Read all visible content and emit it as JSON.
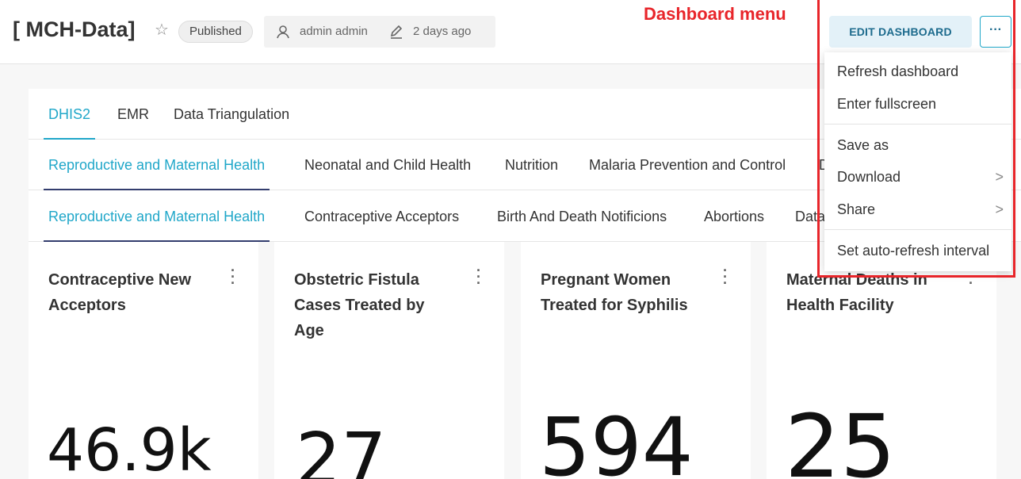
{
  "header": {
    "title": "[ MCH-Data]",
    "status_badge": "Published",
    "owner": "admin admin",
    "modified": "2 days ago",
    "edit_button": "EDIT DASHBOARD",
    "more_button": "···"
  },
  "annotation": {
    "label": "Dashboard menu",
    "color": "#e8252a"
  },
  "tabs": {
    "level1": [
      "DHIS2",
      "EMR",
      "Data Triangulation"
    ],
    "level2": [
      "Reproductive and Maternal Health",
      "Neonatal and Child Health",
      "Nutrition",
      "Malaria Prevention and Control",
      "D"
    ],
    "level3": [
      "Reproductive and Maternal Health",
      "Contraceptive Acceptors",
      "Birth And Death Notificions",
      "Abortions",
      "Data"
    ]
  },
  "cards": [
    {
      "title": "Contraceptive New Acceptors",
      "value": "46.9k"
    },
    {
      "title": "Obstetric Fistula Cases Treated by Age",
      "value": "27"
    },
    {
      "title": "Pregnant Women Treated for Syphilis",
      "value": "594"
    },
    {
      "title": "Maternal Deaths in Health Facility",
      "value": "25"
    }
  ],
  "menu": {
    "refresh": "Refresh dashboard",
    "fullscreen": "Enter fullscreen",
    "save_as": "Save as",
    "download": "Download",
    "share": "Share",
    "auto_refresh": "Set auto-refresh interval"
  },
  "colors": {
    "accent": "#20a7c9",
    "text": "#333333",
    "highlight": "#e8252a"
  },
  "icons": {
    "star": "star-icon",
    "user": "user-icon",
    "pencil": "pencil-icon",
    "kebab": "kebab-icon",
    "chevron": "chevron-right-icon"
  }
}
